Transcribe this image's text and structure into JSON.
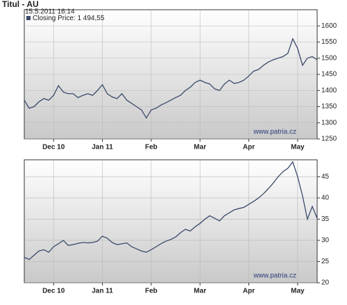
{
  "chart_data": [
    {
      "type": "line",
      "title": "Titul - AU",
      "subtitle": "15.5.2011 16:14",
      "watermark": "www.patria.cz",
      "categories": [
        null,
        null,
        null,
        null,
        null,
        null,
        "Dec 10",
        null,
        null,
        null,
        null,
        null,
        null,
        null,
        null,
        null,
        "Jan 11",
        null,
        null,
        null,
        null,
        null,
        null,
        null,
        null,
        null,
        "Feb",
        null,
        null,
        null,
        null,
        null,
        null,
        null,
        null,
        null,
        "Mar",
        null,
        null,
        null,
        null,
        null,
        null,
        null,
        null,
        null,
        "Apr",
        null,
        null,
        null,
        null,
        null,
        null,
        null,
        null,
        null,
        "May",
        null,
        null,
        null,
        null
      ],
      "series": [
        {
          "name": "Closing Price: 1 494,55",
          "color": "#3a4a6b",
          "values": [
            1370,
            1345,
            1350,
            1365,
            1375,
            1370,
            1385,
            1415,
            1395,
            1390,
            1390,
            1378,
            1385,
            1390,
            1385,
            1400,
            1418,
            1390,
            1380,
            1375,
            1390,
            1370,
            1360,
            1350,
            1340,
            1315,
            1340,
            1345,
            1355,
            1362,
            1370,
            1378,
            1385,
            1400,
            1410,
            1425,
            1432,
            1425,
            1420,
            1405,
            1400,
            1420,
            1432,
            1422,
            1425,
            1432,
            1445,
            1460,
            1465,
            1478,
            1488,
            1495,
            1500,
            1505,
            1515,
            1560,
            1530,
            1478,
            1500,
            1505,
            1495
          ]
        }
      ],
      "ylim": [
        1250,
        1650
      ],
      "yticks": [
        1250,
        1300,
        1350,
        1400,
        1450,
        1500,
        1550,
        1600
      ],
      "grid": true
    },
    {
      "type": "line",
      "watermark": "www.patria.cz",
      "categories": [
        null,
        null,
        null,
        null,
        null,
        null,
        "Dec 10",
        null,
        null,
        null,
        null,
        null,
        null,
        null,
        null,
        null,
        "Jan 11",
        null,
        null,
        null,
        null,
        null,
        null,
        null,
        null,
        null,
        "Feb",
        null,
        null,
        null,
        null,
        null,
        null,
        null,
        null,
        null,
        "Mar",
        null,
        null,
        null,
        null,
        null,
        null,
        null,
        null,
        null,
        "Apr",
        null,
        null,
        null,
        null,
        null,
        null,
        null,
        null,
        null,
        "May",
        null,
        null,
        null,
        null
      ],
      "series": [
        {
          "color": "#3a4a6b",
          "values": [
            26,
            25.5,
            26.5,
            27.5,
            27.8,
            27.2,
            28.5,
            29.2,
            30,
            28.8,
            29,
            29.3,
            29.5,
            29.4,
            29.5,
            29.8,
            31,
            30.5,
            29.5,
            29,
            29.2,
            29.4,
            28.5,
            28,
            27.5,
            27.2,
            27.8,
            28.5,
            29.2,
            29.8,
            30.2,
            30.8,
            31.8,
            32.6,
            32.2,
            33.2,
            34,
            35,
            35.8,
            35.2,
            34.6,
            35.8,
            36.5,
            37.2,
            37.5,
            37.8,
            38.5,
            39.2,
            40,
            41,
            42.2,
            43.5,
            45,
            46.2,
            47,
            48.5,
            45,
            40.5,
            35,
            38,
            35.2
          ]
        }
      ],
      "ylim": [
        20,
        49
      ],
      "yticks": [
        20,
        25,
        30,
        35,
        40,
        45
      ],
      "grid": true
    }
  ]
}
